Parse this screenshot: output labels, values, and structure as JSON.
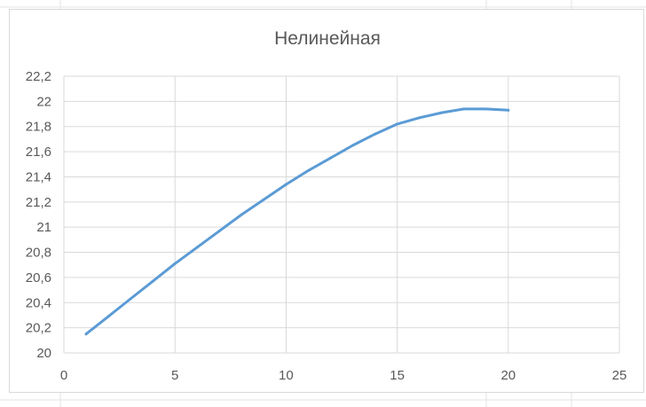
{
  "chart_data": {
    "type": "line",
    "title": "Нелинейная",
    "xlabel": "",
    "ylabel": "",
    "xlim": [
      0,
      25
    ],
    "ylim": [
      20,
      22.2
    ],
    "x_ticks": [
      0,
      5,
      10,
      15,
      20,
      25
    ],
    "y_ticks": [
      20,
      20.2,
      20.4,
      20.6,
      20.8,
      21,
      21.2,
      21.4,
      21.6,
      21.8,
      22,
      22.2
    ],
    "x_tick_labels": [
      "0",
      "5",
      "10",
      "15",
      "20",
      "25"
    ],
    "y_tick_labels": [
      "20",
      "20,2",
      "20,4",
      "20,6",
      "20,8",
      "21",
      "21,2",
      "21,4",
      "21,6",
      "21,8",
      "22",
      "22,2"
    ],
    "grid": true,
    "legend": false,
    "series": [
      {
        "color": "#5b9bd5",
        "x": [
          1,
          2,
          3,
          4,
          5,
          6,
          7,
          8,
          9,
          10,
          11,
          12,
          13,
          14,
          15,
          16,
          17,
          18,
          19,
          20
        ],
        "y": [
          20.15,
          20.29,
          20.43,
          20.57,
          20.71,
          20.84,
          20.97,
          21.1,
          21.22,
          21.34,
          21.45,
          21.55,
          21.65,
          21.74,
          21.82,
          21.87,
          21.91,
          21.94,
          21.94,
          21.93
        ]
      }
    ]
  }
}
